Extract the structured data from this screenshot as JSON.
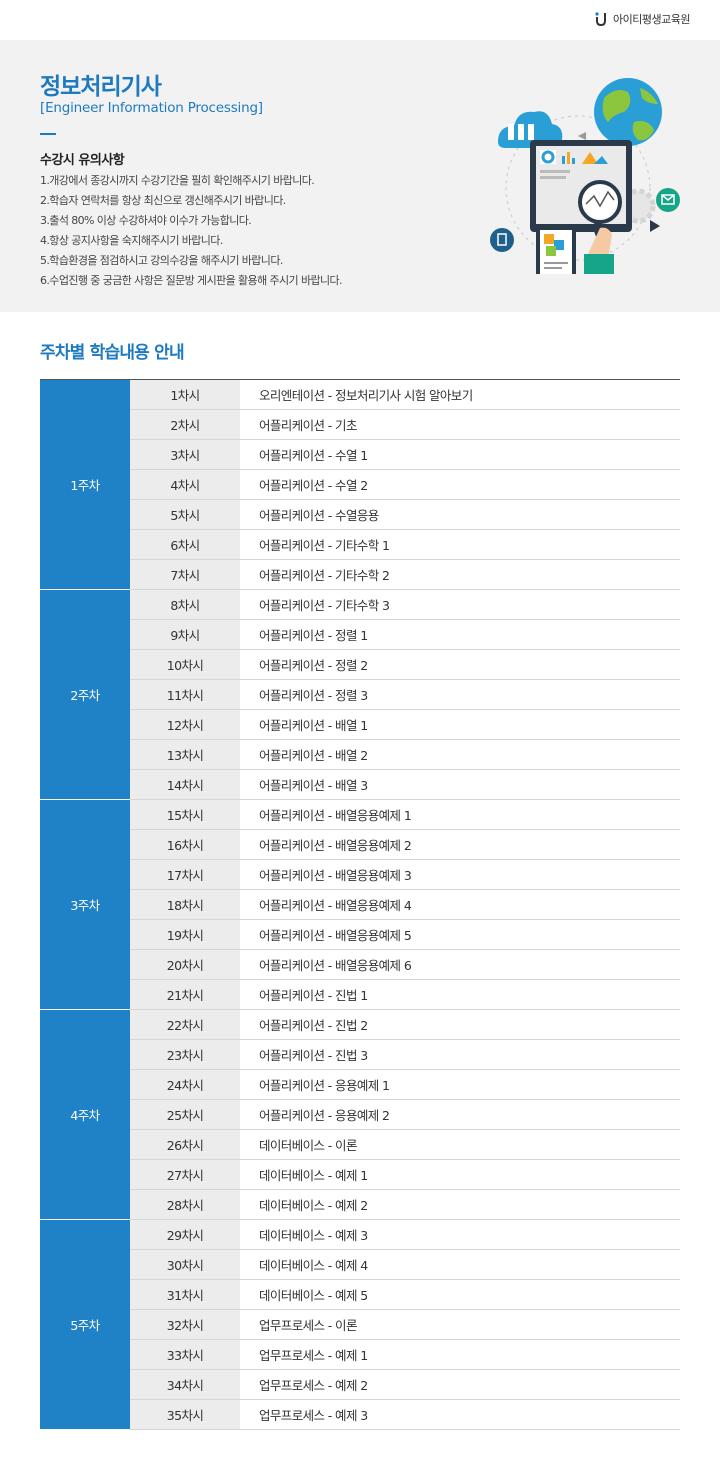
{
  "brand": {
    "name": "아이티평생교육원",
    "logo_icon": "brand-logo-icon",
    "accent": "#1e7ac0"
  },
  "hero": {
    "title": "정보처리기사",
    "subtitle": "[Engineer Information Processing]",
    "notice_heading": "수강시 유의사항",
    "notices": [
      "1.개강에서 종강시까지 수강기간을 필히 확인해주시기 바랍니다.",
      "2.학습자 연락처를 항상 최신으로 갱신해주시기 바랍니다.",
      "3.출석 80% 이상 수강하셔야 이수가 가능합니다.",
      "4.항상 공지사항을 숙지해주시기 바랍니다.",
      "5.학습환경을 점검하시고 강의수강을 해주시기 바랍니다.",
      "6.수업진행  중 궁금한 사항은 질문방 게시판을 활용해 주시기 바랍니다."
    ],
    "illustration_icon": "data-analysis-illustration-icon"
  },
  "schedule": {
    "title": "주차별 학습내용 안내",
    "week_color": "#1f82c6",
    "weeks": [
      {
        "label": "1주차",
        "sessions": [
          {
            "session": "1차시",
            "topic": "오리엔테이션 - 정보처리기사 시험 알아보기"
          },
          {
            "session": "2차시",
            "topic": "어플리케이션 - 기초"
          },
          {
            "session": "3차시",
            "topic": "어플리케이션 - 수열 1"
          },
          {
            "session": "4차시",
            "topic": "어플리케이션 - 수열 2"
          },
          {
            "session": "5차시",
            "topic": "어플리케이션 - 수열응용"
          },
          {
            "session": "6차시",
            "topic": "어플리케이션 - 기타수학 1"
          },
          {
            "session": "7차시",
            "topic": "어플리케이션 - 기타수학 2"
          }
        ]
      },
      {
        "label": "2주차",
        "sessions": [
          {
            "session": "8차시",
            "topic": "어플리케이션 - 기타수학 3"
          },
          {
            "session": "9차시",
            "topic": "어플리케이션 - 정렬 1"
          },
          {
            "session": "10차시",
            "topic": "어플리케이션 - 정렬 2"
          },
          {
            "session": "11차시",
            "topic": "어플리케이션 - 정렬 3"
          },
          {
            "session": "12차시",
            "topic": "어플리케이션 - 배열 1"
          },
          {
            "session": "13차시",
            "topic": "어플리케이션 - 배열 2"
          },
          {
            "session": "14차시",
            "topic": "어플리케이션 - 배열 3"
          }
        ]
      },
      {
        "label": "3주차",
        "sessions": [
          {
            "session": "15차시",
            "topic": "어플리케이션 - 배열응용예제 1"
          },
          {
            "session": "16차시",
            "topic": "어플리케이션 - 배열응용예제 2"
          },
          {
            "session": "17차시",
            "topic": "어플리케이션 - 배열응용예제 3"
          },
          {
            "session": "18차시",
            "topic": "어플리케이션 - 배열응용예제 4"
          },
          {
            "session": "19차시",
            "topic": "어플리케이션 - 배열응용예제 5"
          },
          {
            "session": "20차시",
            "topic": "어플리케이션 - 배열응용예제 6"
          },
          {
            "session": "21차시",
            "topic": "어플리케이션 - 진법 1"
          }
        ]
      },
      {
        "label": "4주차",
        "sessions": [
          {
            "session": "22차시",
            "topic": "어플리케이션 - 진법 2"
          },
          {
            "session": "23차시",
            "topic": "어플리케이션 - 진법 3"
          },
          {
            "session": "24차시",
            "topic": "어플리케이션 - 응용예제 1"
          },
          {
            "session": "25차시",
            "topic": "어플리케이션 - 응용예제 2"
          },
          {
            "session": "26차시",
            "topic": "데이터베이스 - 이론"
          },
          {
            "session": "27차시",
            "topic": "데이터베이스 - 예제 1"
          },
          {
            "session": "28차시",
            "topic": "데이터베이스 - 예제 2"
          }
        ]
      },
      {
        "label": "5주차",
        "sessions": [
          {
            "session": "29차시",
            "topic": "데이터베이스 - 예제 3"
          },
          {
            "session": "30차시",
            "topic": "데이터베이스 - 예제 4"
          },
          {
            "session": "31차시",
            "topic": "데이터베이스 - 예제 5"
          },
          {
            "session": "32차시",
            "topic": "업무프로세스 - 이론"
          },
          {
            "session": "33차시",
            "topic": "업무프로세스 - 예제 1"
          },
          {
            "session": "34차시",
            "topic": "업무프로세스 - 예제 2"
          },
          {
            "session": "35차시",
            "topic": "업무프로세스 - 예제 3"
          }
        ]
      }
    ]
  }
}
